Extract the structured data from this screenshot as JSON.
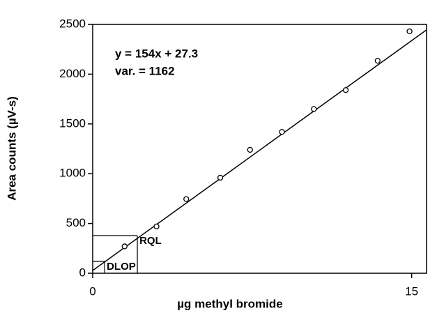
{
  "chart_data": {
    "type": "scatter",
    "x_label": "µg methyl bromide",
    "y_label": "Area counts (µV-s)",
    "annotations": [
      "y = 154x + 27.3",
      "var. = 1162"
    ],
    "x": [
      1.5,
      3.0,
      4.4,
      6.0,
      7.4,
      8.9,
      10.4,
      11.9,
      13.4,
      14.9
    ],
    "values": [
      270,
      470,
      745,
      960,
      1240,
      1420,
      1650,
      1840,
      2135,
      2430
    ],
    "color": "#000000",
    "fit_line": {
      "x": [
        0,
        15.7
      ],
      "values": [
        27.3,
        2445
      ]
    },
    "limits": [
      {
        "label": "RQL",
        "x": 2.1,
        "y": 378
      },
      {
        "label": "DLOP",
        "x": 0.56,
        "y": 119
      }
    ],
    "xlim": [
      0,
      15.7
    ],
    "ylim": [
      0,
      2500
    ],
    "xticks": [
      0,
      15
    ],
    "yticks": [
      0,
      500,
      1000,
      1500,
      2000,
      2500
    ]
  }
}
